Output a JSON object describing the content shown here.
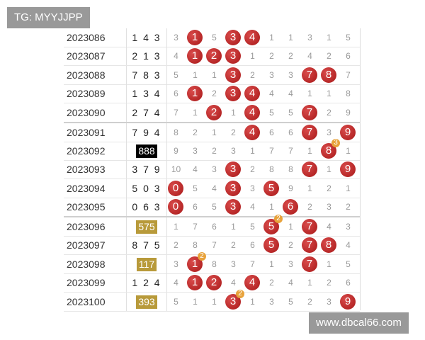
{
  "tag": "TG: MYYJJPP",
  "site": "www.dbcal66.com",
  "rows": [
    {
      "period": "2023086",
      "number": "1 4 3",
      "cells": [
        "3",
        "1",
        "5",
        "3",
        "4",
        "1",
        "1",
        "3",
        "1",
        "5"
      ],
      "hits": [
        1,
        3,
        4
      ]
    },
    {
      "period": "2023087",
      "number": "2 1 3",
      "cells": [
        "4",
        "1",
        "2",
        "3",
        "1",
        "2",
        "2",
        "4",
        "2",
        "6"
      ],
      "hits": [
        1,
        2,
        3
      ]
    },
    {
      "period": "2023088",
      "number": "7 8 3",
      "cells": [
        "5",
        "1",
        "1",
        "3",
        "2",
        "3",
        "3",
        "7",
        "8",
        "7"
      ],
      "hits": [
        3,
        7,
        8
      ]
    },
    {
      "period": "2023089",
      "number": "1 3 4",
      "cells": [
        "6",
        "1",
        "2",
        "3",
        "4",
        "4",
        "4",
        "1",
        "1",
        "8"
      ],
      "hits": [
        1,
        3,
        4
      ]
    },
    {
      "period": "2023090",
      "number": "2 7 4",
      "cells": [
        "7",
        "1",
        "2",
        "1",
        "4",
        "5",
        "5",
        "7",
        "2",
        "9"
      ],
      "hits": [
        2,
        4,
        7
      ]
    },
    {
      "period": "2023091",
      "number": "7 9 4",
      "cells": [
        "8",
        "2",
        "1",
        "2",
        "4",
        "6",
        "6",
        "7",
        "3",
        "9"
      ],
      "hits": [
        4,
        7,
        9
      ]
    },
    {
      "period": "2023092",
      "number": "888",
      "highlight": "black",
      "cells": [
        "9",
        "3",
        "2",
        "3",
        "1",
        "7",
        "7",
        "1",
        "8",
        "1"
      ],
      "hits": [
        8
      ],
      "badge": {
        "col": 8,
        "text": "3"
      }
    },
    {
      "period": "2023093",
      "number": "3 7 9",
      "cells": [
        "10",
        "4",
        "3",
        "3",
        "2",
        "8",
        "8",
        "7",
        "1",
        "9"
      ],
      "hits": [
        3,
        7,
        9
      ]
    },
    {
      "period": "2023094",
      "number": "5 0 3",
      "cells": [
        "0",
        "5",
        "4",
        "3",
        "3",
        "5",
        "9",
        "1",
        "2",
        "1"
      ],
      "hits": [
        0,
        3,
        5
      ]
    },
    {
      "period": "2023095",
      "number": "0 6 3",
      "cells": [
        "0",
        "6",
        "5",
        "3",
        "4",
        "1",
        "6",
        "2",
        "3",
        "2"
      ],
      "hits": [
        0,
        3,
        6
      ]
    },
    {
      "period": "2023096",
      "number": "575",
      "highlight": "gold",
      "cells": [
        "1",
        "7",
        "6",
        "1",
        "5",
        "5",
        "1",
        "7",
        "4",
        "3"
      ],
      "hits": [
        5,
        7
      ],
      "badge": {
        "col": 5,
        "text": "2"
      }
    },
    {
      "period": "2023097",
      "number": "8 7 5",
      "cells": [
        "2",
        "8",
        "7",
        "2",
        "6",
        "5",
        "2",
        "7",
        "8",
        "4"
      ],
      "hits": [
        5,
        7,
        8
      ]
    },
    {
      "period": "2023098",
      "number": "117",
      "highlight": "gold",
      "cells": [
        "3",
        "1",
        "8",
        "3",
        "7",
        "1",
        "3",
        "7",
        "1",
        "5"
      ],
      "hits": [
        1,
        7
      ],
      "badge": {
        "col": 1,
        "text": "2"
      }
    },
    {
      "period": "2023099",
      "number": "1 2 4",
      "cells": [
        "4",
        "1",
        "2",
        "4",
        "4",
        "2",
        "4",
        "1",
        "2",
        "6"
      ],
      "hits": [
        1,
        2,
        4
      ]
    },
    {
      "period": "2023100",
      "number": "393",
      "highlight": "gold",
      "cells": [
        "5",
        "1",
        "1",
        "3",
        "1",
        "3",
        "5",
        "2",
        "3",
        "9"
      ],
      "hits": [
        3,
        9
      ],
      "badge": {
        "col": 3,
        "text": "2"
      }
    }
  ]
}
